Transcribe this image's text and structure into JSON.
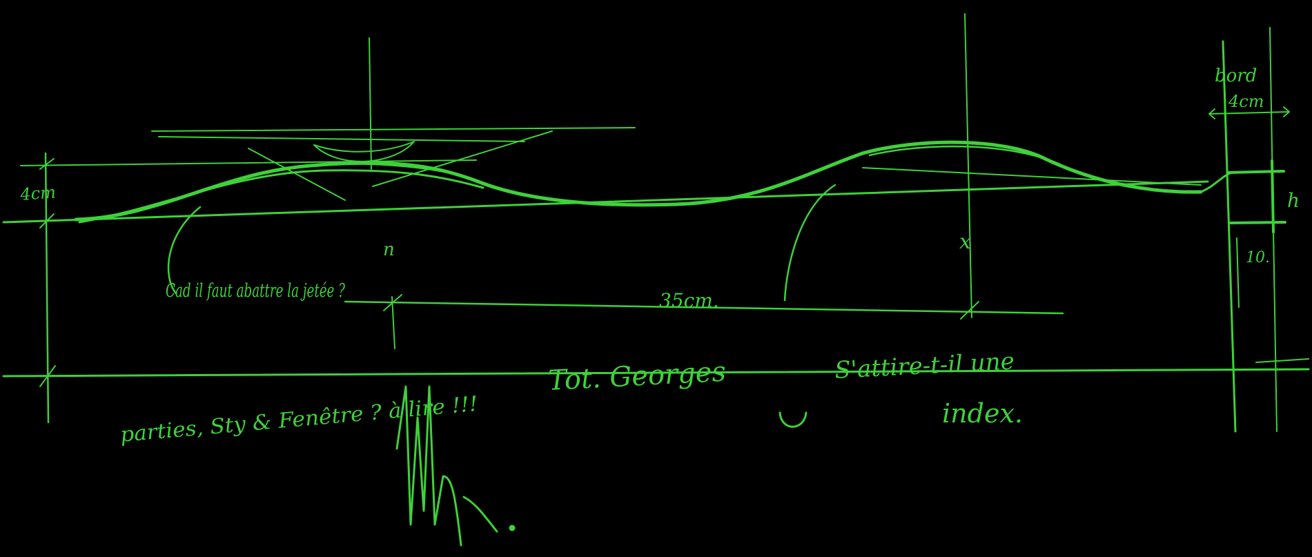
{
  "colors": {
    "background": "#000000",
    "ink": "#3fd13a",
    "ink_dim": "#2fae2c"
  },
  "annotations": {
    "dim_left": "4cm",
    "dim_top_right": "4cm",
    "dim_top_label": "bord",
    "dim_height": "h",
    "dim_bottom_right": "10.",
    "dim_span": "35cm.",
    "axis_label_left": "n",
    "axis_label_right": "x",
    "note_question": "Cad il faut abattre la jetée ?",
    "note_base_left": "Tot. Georges",
    "note_base_right": "S'attire-t-il une",
    "note_index": "index.",
    "note_bottom_left": "parties, Sty & Fenêtre ? à lire !!!",
    "signature": "Wh.."
  }
}
